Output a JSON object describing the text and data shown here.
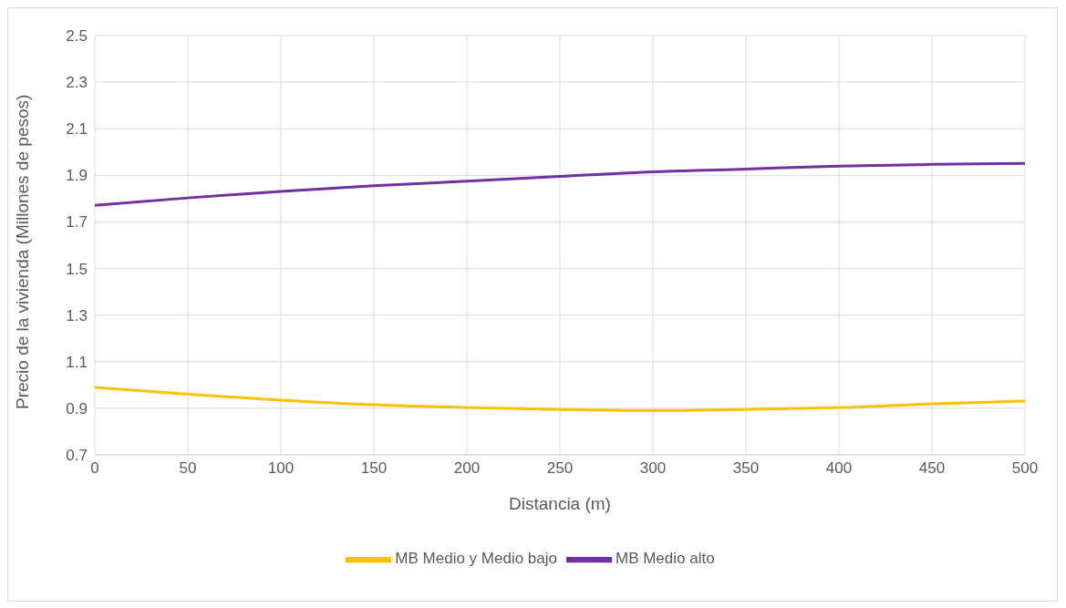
{
  "chart_data": {
    "type": "line",
    "xlabel": "Distancia (m)",
    "ylabel": "Precio de la vivienda (Millones de pesos)",
    "x": [
      0,
      50,
      100,
      150,
      200,
      250,
      300,
      350,
      400,
      450,
      500
    ],
    "series": [
      {
        "name": "MB Medio y Medio bajo",
        "color": "#ffc000",
        "values": [
          0.99,
          0.96,
          0.935,
          0.915,
          0.903,
          0.895,
          0.891,
          0.895,
          0.903,
          0.919,
          0.931
        ]
      },
      {
        "name": "MB Medio alto",
        "color": "#7030a0",
        "values": [
          1.771,
          1.803,
          1.831,
          1.855,
          1.875,
          1.895,
          1.915,
          1.927,
          1.939,
          1.947,
          1.951
        ]
      }
    ],
    "xlim": [
      0,
      500
    ],
    "xticks": [
      0,
      50,
      100,
      150,
      200,
      250,
      300,
      350,
      400,
      450,
      500
    ],
    "ylim": [
      0.7,
      2.5
    ],
    "yticks": [
      0.7,
      0.9,
      1.1,
      1.3,
      1.5,
      1.7,
      1.9,
      2.1,
      2.3,
      2.5
    ],
    "grid": true,
    "legend": "bottom",
    "marker": "none",
    "line_style": "solid"
  }
}
